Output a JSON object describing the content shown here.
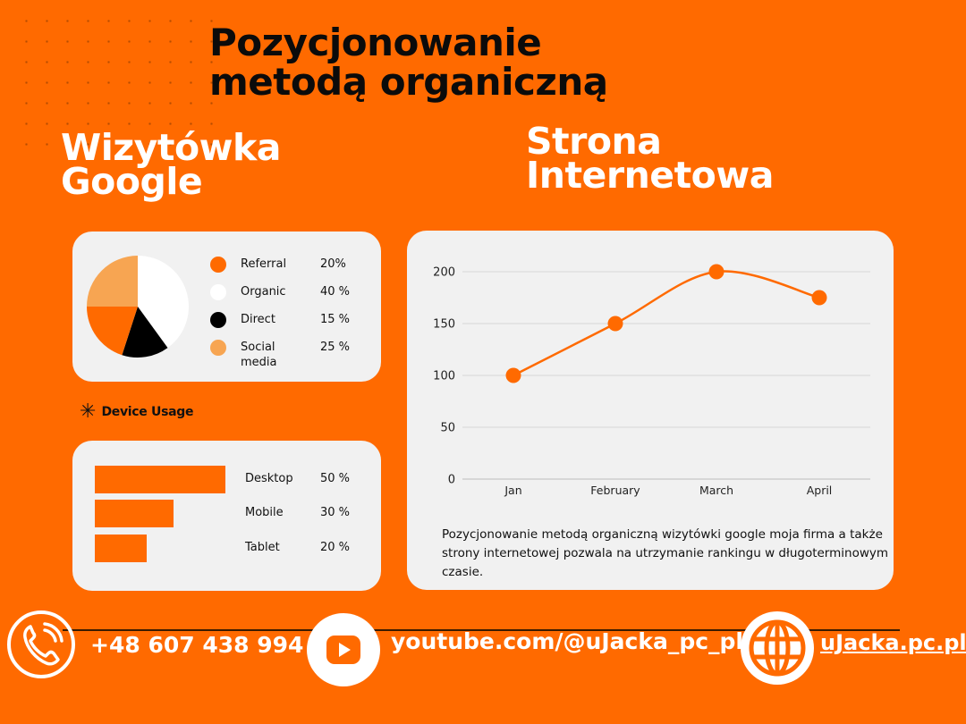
{
  "header": {
    "title_line1": "Pozycjonowanie",
    "title_line2": "metodą organiczną"
  },
  "sections": {
    "google_line1": "Wizytówka",
    "google_line2": "Google",
    "web_line1": "Strona",
    "web_line2": "Internetowa"
  },
  "device_usage_title": "Device Usage",
  "description": "Pozycjonowanie metodą organiczną wizytówki google moja firma a także strony internetowej pozwala na utrzymanie rankingu w długoterminowym czasie.",
  "footer": {
    "phone": "+48 607 438 994",
    "youtube": "youtube.com/@uJacka_pc_pl",
    "website": "uJacka.pc.pl"
  },
  "colors": {
    "background": "#FF6A00",
    "card": "#F1F1F1",
    "referral": "#FF6A00",
    "organic": "#FFFFFF",
    "direct": "#000000",
    "social": "#F7A552"
  },
  "chart_data": [
    {
      "type": "pie",
      "slices": [
        {
          "label": "Referral",
          "value": 20,
          "value_label": "20%",
          "color": "#FF6A00"
        },
        {
          "label": "Organic",
          "value": 40,
          "value_label": "40 %",
          "color": "#FFFFFF"
        },
        {
          "label": "Direct",
          "value": 15,
          "value_label": "15 %",
          "color": "#000000"
        },
        {
          "label": "Social media",
          "value": 25,
          "value_label": "25 %",
          "color": "#F7A552"
        }
      ]
    },
    {
      "type": "bar",
      "orientation": "horizontal",
      "categories": [
        "Desktop",
        "Mobile",
        "Tablet"
      ],
      "values": [
        50,
        30,
        20
      ],
      "value_labels": [
        "50 %",
        "30 %",
        "20 %"
      ],
      "color": "#FF6A00"
    },
    {
      "type": "line",
      "x": [
        "Jan",
        "February",
        "March",
        "April"
      ],
      "y": [
        100,
        150,
        200,
        175
      ],
      "ylim": [
        0,
        200
      ],
      "yticks": [
        0,
        50,
        100,
        150,
        200
      ],
      "grid": true,
      "smooth": true,
      "color": "#FF6A00"
    }
  ]
}
